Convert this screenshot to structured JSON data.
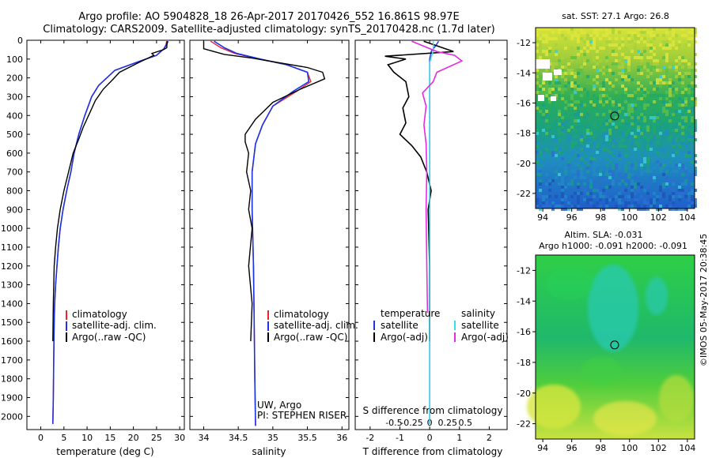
{
  "header": {
    "line1": "Argo profile: AO 5904828_18 26-Apr-2017 20170426_552 16.861S 98.97E",
    "line2": "Climatology: CARS2009. Satellite-adjusted climatology: synTS_20170428.nc (1.7d later)"
  },
  "colors": {
    "climatology": "#e8262e",
    "satellite_adj": "#1a33e6",
    "argo": "#000000",
    "sal_satellite": "#2ee0ee",
    "sal_argo": "#e42be4"
  },
  "depth_axis": {
    "ticks": [
      0,
      100,
      200,
      300,
      400,
      500,
      600,
      700,
      800,
      900,
      1000,
      1100,
      1200,
      1300,
      1400,
      1500,
      1600,
      1700,
      1800,
      1900,
      2000
    ],
    "range": [
      0,
      2070
    ]
  },
  "chart_data": [
    {
      "type": "line",
      "title": "",
      "xlabel": "temperature (deg C)",
      "ylabel": "depth",
      "xlim": [
        -3,
        31
      ],
      "ylim": [
        2070,
        0
      ],
      "xticks": [
        0,
        5,
        10,
        15,
        20,
        25,
        30
      ],
      "legend": [
        "climatology",
        "satellite-adj. clim.",
        "Argo(..raw -QC)"
      ],
      "series": [
        {
          "name": "climatology",
          "x": [
            27.2,
            27.0,
            26.6,
            25.0,
            21.5,
            16.0,
            12.5,
            11.0,
            9.5,
            8.2,
            7.2,
            6.5,
            5.6,
            4.8,
            4.2,
            3.8,
            3.5,
            3.2,
            3.0,
            2.9,
            2.8,
            2.7,
            2.6
          ],
          "y": [
            5,
            25,
            45,
            80,
            110,
            160,
            240,
            300,
            400,
            500,
            600,
            700,
            800,
            900,
            1000,
            1100,
            1200,
            1300,
            1400,
            1500,
            1700,
            1900,
            2040
          ]
        },
        {
          "name": "satellite-adj. clim.",
          "x": [
            27.5,
            27.1,
            26.6,
            25.0,
            21.5,
            16.0,
            12.5,
            11.0,
            9.5,
            8.2,
            7.2,
            6.5,
            5.6,
            4.8,
            4.2,
            3.8,
            3.5,
            3.2,
            3.0,
            2.9,
            2.8,
            2.7,
            2.6
          ],
          "y": [
            5,
            25,
            45,
            80,
            110,
            160,
            240,
            300,
            400,
            500,
            600,
            700,
            800,
            900,
            1000,
            1100,
            1200,
            1300,
            1400,
            1500,
            1700,
            1900,
            2040
          ]
        },
        {
          "name": "Argo(..raw -QC)",
          "x": [
            27.3,
            27.2,
            26.5,
            24.0,
            24.4,
            21.0,
            17.0,
            15.5,
            13.5,
            11.8,
            10.5,
            9.2,
            8.3,
            7.0,
            6.0,
            5.0,
            4.2,
            3.6,
            3.2,
            2.9,
            2.7,
            2.6
          ],
          "y": [
            5,
            40,
            50,
            70,
            80,
            120,
            170,
            210,
            260,
            320,
            390,
            460,
            520,
            600,
            700,
            800,
            900,
            1000,
            1100,
            1200,
            1400,
            1600
          ]
        }
      ]
    },
    {
      "type": "line",
      "title": "",
      "xlabel": "salinity",
      "ylabel": "depth",
      "xlim": [
        33.8,
        36.1
      ],
      "ylim": [
        2070,
        0
      ],
      "xticks": [
        34,
        34.5,
        35,
        35.5,
        36
      ],
      "legend": [
        "climatology",
        "satellite-adj. clim.",
        "Argo(..raw -QC)"
      ],
      "annotation": [
        "UW, Argo",
        "PI: STEPHEN RISER"
      ],
      "series": [
        {
          "name": "climatology",
          "x": [
            34.1,
            34.25,
            34.45,
            34.8,
            35.2,
            35.5,
            35.55,
            35.35,
            35.0,
            34.85,
            34.75,
            34.7,
            34.7,
            34.72,
            34.73,
            34.74,
            34.75
          ],
          "y": [
            5,
            40,
            70,
            100,
            130,
            170,
            220,
            270,
            350,
            450,
            550,
            700,
            900,
            1200,
            1500,
            1800,
            2050
          ]
        },
        {
          "name": "satellite-adj. clim.",
          "x": [
            34.15,
            34.3,
            34.48,
            34.82,
            35.2,
            35.5,
            35.52,
            35.3,
            35.0,
            34.85,
            34.75,
            34.7,
            34.7,
            34.72,
            34.73,
            34.74,
            34.75
          ],
          "y": [
            5,
            40,
            70,
            100,
            130,
            170,
            220,
            270,
            350,
            450,
            550,
            700,
            900,
            1200,
            1500,
            1800,
            2050
          ]
        },
        {
          "name": "Argo(..raw -QC)",
          "x": [
            34.0,
            34.0,
            34.3,
            34.7,
            35.1,
            35.5,
            35.72,
            35.75,
            35.4,
            35.0,
            34.75,
            34.6,
            34.6,
            34.65,
            34.62,
            34.68,
            34.65,
            34.7,
            34.65,
            34.7,
            34.68
          ],
          "y": [
            5,
            45,
            75,
            95,
            120,
            145,
            170,
            205,
            260,
            330,
            420,
            500,
            540,
            600,
            700,
            800,
            900,
            1000,
            1200,
            1400,
            1600
          ]
        }
      ]
    },
    {
      "type": "line",
      "title": "",
      "xlabel": "T difference from climatology",
      "xlabel2": "S difference from climatology",
      "ylabel": "depth",
      "xlim": [
        -2.5,
        2.6
      ],
      "ylim": [
        2070,
        0
      ],
      "xticks": [
        -2,
        -1,
        0,
        1,
        2
      ],
      "xticks_top": [
        -0.5,
        -0.25,
        0,
        0.25,
        0.5
      ],
      "legend": [
        "temperature",
        "satellite",
        "Argo(-adj)",
        "salinity",
        "satellite",
        "Argo(-adj)"
      ],
      "series": [
        {
          "name": "temperature satellite",
          "x": [
            0.3,
            0.2,
            0.05,
            0,
            0,
            0,
            0
          ],
          "y": [
            5,
            30,
            60,
            100,
            300,
            1000,
            2040
          ]
        },
        {
          "name": "temperature Argo(-adj)",
          "x": [
            -0.2,
            0.8,
            -1.5,
            -0.8,
            -1.4,
            -1.2,
            -0.8,
            -0.7,
            -0.9,
            -0.8,
            -1.0,
            -0.6,
            -0.3,
            -0.1,
            0.05,
            -0.05,
            0,
            0
          ],
          "y": [
            5,
            60,
            85,
            100,
            130,
            170,
            220,
            300,
            360,
            440,
            500,
            560,
            620,
            700,
            800,
            900,
            1200,
            1600
          ]
        },
        {
          "name": "salinity satellite",
          "x": [
            0.05,
            0.05,
            0.03,
            0,
            0,
            0,
            0,
            0
          ],
          "y": [
            5,
            60,
            80,
            120,
            300,
            800,
            1500,
            2040
          ]
        },
        {
          "name": "salinity Argo(-adj)",
          "x": [
            -0.25,
            0.1,
            0.35,
            0.45,
            0.1,
            0.05,
            -0.1,
            -0.05,
            -0.08,
            -0.05,
            -0.04,
            -0.05,
            -0.04,
            -0.03
          ],
          "y": [
            5,
            60,
            80,
            110,
            170,
            220,
            280,
            350,
            450,
            550,
            700,
            900,
            1200,
            1450
          ]
        }
      ]
    },
    {
      "type": "heatmap",
      "title": "sat. SST: 27.1  Argo: 26.8",
      "xticks": [
        94,
        96,
        98,
        100,
        102,
        104
      ],
      "yticks": [
        -12,
        -14,
        -16,
        -18,
        -20,
        -22
      ],
      "xlim": [
        93.5,
        104.5
      ],
      "ylim": [
        -23,
        -11
      ],
      "marker": {
        "lon": 98.97,
        "lat": -16.861
      }
    },
    {
      "type": "heatmap",
      "title": "Altim. SLA: -0.031",
      "subtitle": "Argo h1000: -0.091  h2000: -0.091",
      "xticks": [
        94,
        96,
        98,
        100,
        102,
        104
      ],
      "yticks": [
        -12,
        -14,
        -16,
        -18,
        -20,
        -22
      ],
      "xlim": [
        93.5,
        104.5
      ],
      "ylim": [
        -23,
        -11
      ],
      "marker": {
        "lon": 98.97,
        "lat": -16.861
      }
    }
  ],
  "side_stamp": "©IMOS 05-May-2017 20:38:45"
}
